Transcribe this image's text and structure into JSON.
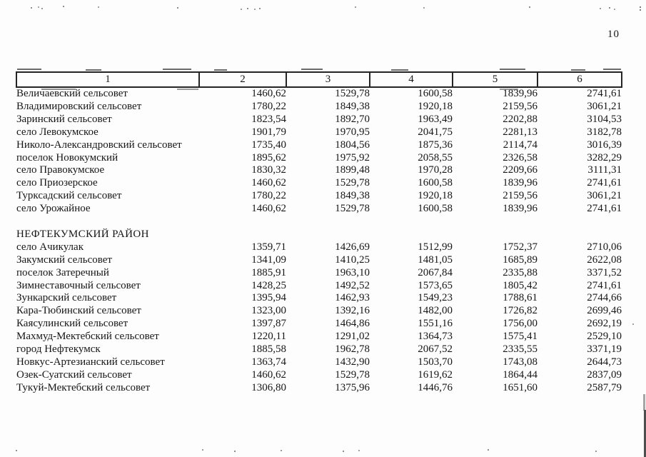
{
  "page": {
    "number": "10"
  },
  "table": {
    "columns": [
      "1",
      "2",
      "3",
      "4",
      "5",
      "6"
    ],
    "sections": [
      {
        "title": "",
        "rows": [
          {
            "name": "Величаевский сельсовет",
            "values": [
              "1460,62",
              "1529,78",
              "1600,58",
              "1839,96",
              "2741,61"
            ]
          },
          {
            "name": "Владимировский сельсовет",
            "values": [
              "1780,22",
              "1849,38",
              "1920,18",
              "2159,56",
              "3061,21"
            ]
          },
          {
            "name": "Заринский сельсовет",
            "values": [
              "1823,54",
              "1892,70",
              "1963,49",
              "2202,88",
              "3104,53"
            ]
          },
          {
            "name": "село Левокумское",
            "values": [
              "1901,79",
              "1970,95",
              "2041,75",
              "2281,13",
              "3182,78"
            ]
          },
          {
            "name": "Николо-Александровский сельсовет",
            "values": [
              "1735,40",
              "1804,56",
              "1875,36",
              "2114,74",
              "3016,39"
            ]
          },
          {
            "name": "поселок Новокумский",
            "values": [
              "1895,62",
              "1975,92",
              "2058,55",
              "2326,58",
              "3282,29"
            ]
          },
          {
            "name": "село Правокумское",
            "values": [
              "1830,32",
              "1899,48",
              "1970,28",
              "2209,66",
              "3111,31"
            ]
          },
          {
            "name": "село Приозерское",
            "values": [
              "1460,62",
              "1529,78",
              "1600,58",
              "1839,96",
              "2741,61"
            ]
          },
          {
            "name": "Турксадский сельсовет",
            "values": [
              "1780,22",
              "1849,38",
              "1920,18",
              "2159,56",
              "3061,21"
            ]
          },
          {
            "name": "село Урожайное",
            "values": [
              "1460,62",
              "1529,78",
              "1600,58",
              "1839,96",
              "2741,61"
            ]
          }
        ]
      },
      {
        "title": "НЕФТЕКУМСКИЙ РАЙОН",
        "rows": [
          {
            "name": "село Ачикулак",
            "values": [
              "1359,71",
              "1426,69",
              "1512,99",
              "1752,37",
              "2710,06"
            ]
          },
          {
            "name": "Закумский сельсовет",
            "values": [
              "1341,09",
              "1410,25",
              "1481,05",
              "1685,89",
              "2622,08"
            ]
          },
          {
            "name": "поселок Затеречный",
            "values": [
              "1885,91",
              "1963,10",
              "2067,84",
              "2335,88",
              "3371,52"
            ]
          },
          {
            "name": "Зимнеставочный сельсовет",
            "values": [
              "1428,25",
              "1492,52",
              "1573,65",
              "1805,42",
              "2741,61"
            ]
          },
          {
            "name": "Зункарский сельсовет",
            "values": [
              "1395,94",
              "1462,93",
              "1549,23",
              "1788,61",
              "2744,66"
            ]
          },
          {
            "name": "Кара-Тюбинский сельсовет",
            "values": [
              "1323,00",
              "1392,16",
              "1482,00",
              "1726,82",
              "2699,46"
            ]
          },
          {
            "name": "Каясулинский сельсовет",
            "values": [
              "1397,87",
              "1464,86",
              "1551,16",
              "1756,00",
              "2692,19"
            ]
          },
          {
            "name": "Махмуд-Мектебский сельсовет",
            "values": [
              "1220,11",
              "1291,02",
              "1364,73",
              "1575,41",
              "2529,10"
            ]
          },
          {
            "name": "город Нефтекумск",
            "values": [
              "1885,58",
              "1962,78",
              "2067,52",
              "2335,55",
              "3371,19"
            ]
          },
          {
            "name": "Новкус-Артезианский сельсовет",
            "values": [
              "1363,74",
              "1432,90",
              "1503,70",
              "1743,08",
              "2644,73"
            ]
          },
          {
            "name": "Озек-Суатский сельсовет",
            "values": [
              "1460,62",
              "1529,78",
              "1619,62",
              "1864,44",
              "2837,09"
            ]
          },
          {
            "name": "Тукуй-Мектебский сельсовет",
            "values": [
              "1306,80",
              "1375,96",
              "1446,76",
              "1651,60",
              "2587,79"
            ]
          }
        ]
      }
    ]
  }
}
